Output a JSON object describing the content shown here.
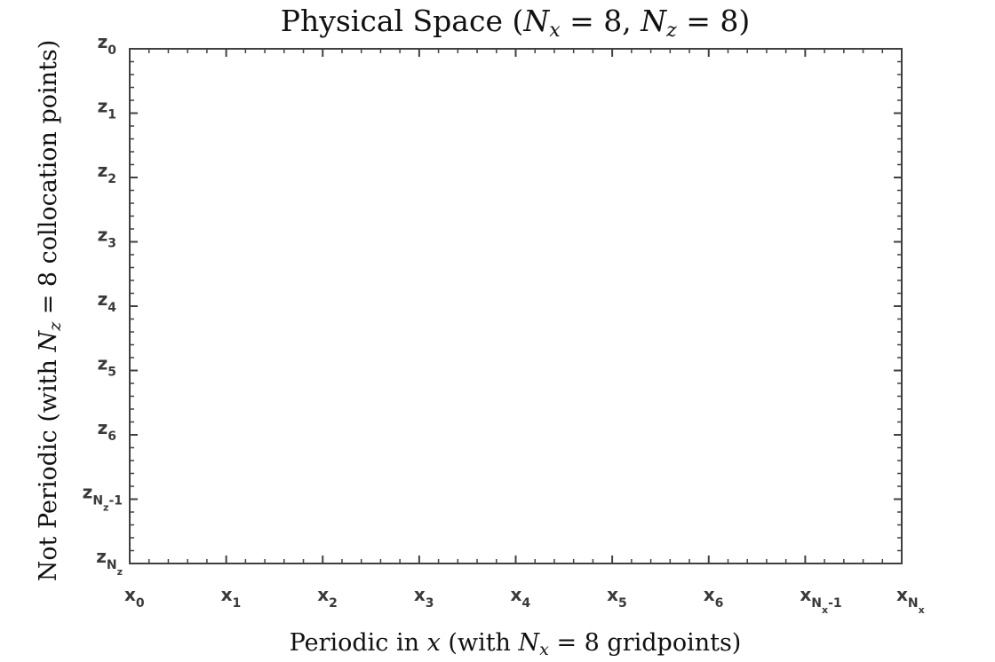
{
  "chart_data": {
    "type": "scatter",
    "title": {
      "prefix": "Physical Space (",
      "nx_sym": "N",
      "nx_sub": "x",
      "nx_val": " = 8, ",
      "nz_sym": "N",
      "nz_sub": "z",
      "nz_val": " = 8)"
    },
    "xlabel": {
      "pre": "Periodic in ",
      "var": "x",
      "mid": " (with ",
      "sym": "N",
      "sub": "x",
      "post": " = 8 gridpoints)"
    },
    "ylabel": {
      "pre": "Not Periodic (with ",
      "sym": "N",
      "sub": "z",
      "post": " = 8 collocation points)"
    },
    "x_ticks": [
      {
        "base": "x",
        "sub": "0"
      },
      {
        "base": "x",
        "sub": "1"
      },
      {
        "base": "x",
        "sub": "2"
      },
      {
        "base": "x",
        "sub": "3"
      },
      {
        "base": "x",
        "sub": "4"
      },
      {
        "base": "x",
        "sub": "5"
      },
      {
        "base": "x",
        "sub": "6"
      },
      {
        "base": "x",
        "sub": "N",
        "subsub": "x",
        "tail": "-1"
      },
      {
        "base": "x",
        "sub": "N",
        "subsub": "x"
      }
    ],
    "y_ticks": [
      {
        "base": "z",
        "sub": "0"
      },
      {
        "base": "z",
        "sub": "1"
      },
      {
        "base": "z",
        "sub": "2"
      },
      {
        "base": "z",
        "sub": "3"
      },
      {
        "base": "z",
        "sub": "4"
      },
      {
        "base": "z",
        "sub": "5"
      },
      {
        "base": "z",
        "sub": "6"
      },
      {
        "base": "z",
        "sub": "N",
        "subsub": "z",
        "tail": "-1"
      },
      {
        "base": "z",
        "sub": "N",
        "subsub": "z"
      }
    ],
    "minor_ticks_per_interval": 5,
    "xlim": [
      0,
      8
    ],
    "ylim": [
      0,
      8
    ],
    "y_direction": "reversed",
    "grid": false,
    "box": true,
    "axis_color": "#404040",
    "series": []
  }
}
